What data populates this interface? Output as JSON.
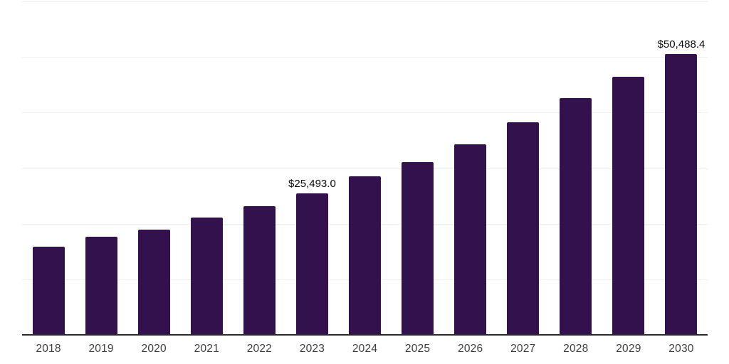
{
  "chart_data": {
    "type": "bar",
    "title": "",
    "xlabel": "",
    "ylabel": "",
    "categories": [
      "2018",
      "2019",
      "2020",
      "2021",
      "2022",
      "2023",
      "2024",
      "2025",
      "2026",
      "2027",
      "2028",
      "2029",
      "2030"
    ],
    "values": [
      15800,
      17600,
      18950,
      21150,
      23150,
      25493.0,
      28500,
      31100,
      34300,
      38300,
      42550,
      46500,
      50488.4
    ],
    "annotations": [
      {
        "category": "2023",
        "text": "$25,493.0"
      },
      {
        "category": "2030",
        "text": "$50,488.4"
      }
    ],
    "ylim": [
      0,
      60000
    ],
    "grid_interval": 10000,
    "grid": true,
    "legend": "none",
    "bar_color": "#33114d",
    "gridline_color": "#efefef",
    "axis_line_color": "#2b2b2b",
    "tick_label_color": "#3d3d3d",
    "data_label_color": "#0a0a0a"
  }
}
